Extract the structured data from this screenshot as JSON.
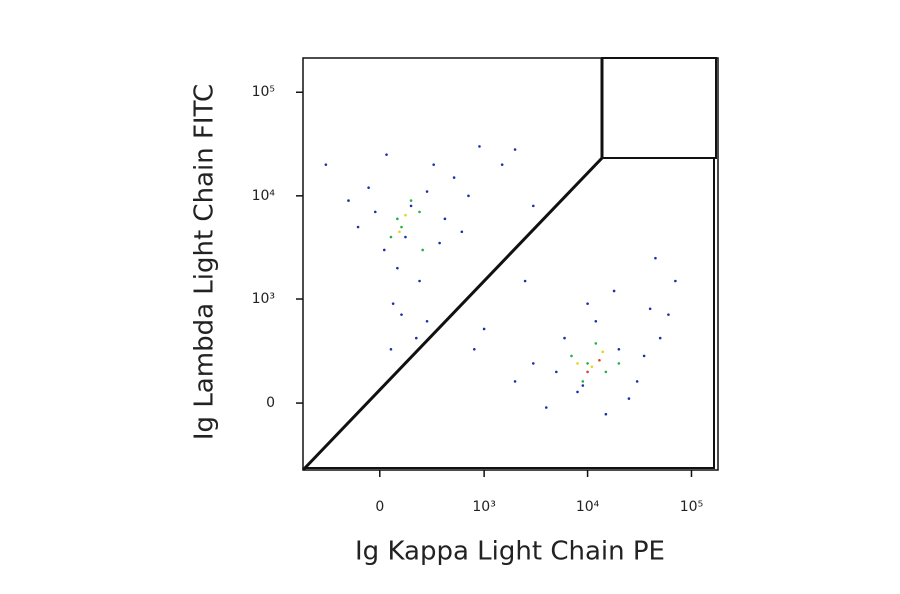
{
  "chart_data": {
    "type": "scatter",
    "scale": "biexponential",
    "x_label": "Ig Kappa Light Chain PE",
    "y_label": "Ig Lambda Light Chain FITC",
    "xlim": [
      -530,
      180000
    ],
    "ylim": [
      -420,
      214000
    ],
    "xticks": [
      0,
      {
        "value": 1000,
        "label": "10³"
      },
      {
        "value": 10000,
        "label": "10⁴"
      },
      {
        "value": 100000,
        "label": "10⁵"
      }
    ],
    "yticks": [
      0,
      {
        "value": 1000,
        "label": "10³"
      },
      {
        "value": 10000,
        "label": "10⁴"
      },
      {
        "value": 100000,
        "label": "10⁵"
      }
    ],
    "series": [
      {
        "color": "#1a2fa8",
        "x": [
          20,
          150,
          -50,
          300,
          80,
          400,
          -100,
          200,
          60,
          250,
          500,
          700,
          30,
          120,
          -20,
          350,
          900,
          1500,
          100,
          180,
          50,
          600,
          -150,
          250,
          2000,
          3000,
          -300,
          5000,
          8000,
          20000,
          30000,
          3000,
          12000,
          50000,
          2000,
          15000,
          40000,
          6000,
          25000,
          10000,
          70000,
          4000,
          18000,
          35000,
          9000,
          1000,
          60000,
          800,
          2500,
          45000
        ],
        "values": [
          3000,
          8000,
          12000,
          20000,
          2000,
          6000,
          5000,
          1500,
          900,
          600,
          15000,
          10000,
          25000,
          4000,
          7000,
          3500,
          30000,
          20000,
          700,
          400,
          300,
          4500,
          9000,
          11000,
          28000,
          8000,
          20000,
          150,
          50,
          300,
          100,
          200,
          600,
          400,
          100,
          -50,
          800,
          400,
          20,
          900,
          1500,
          -20,
          1200,
          250,
          80,
          500,
          700,
          300,
          1500,
          2500
        ]
      },
      {
        "color": "#21b04a",
        "x": [
          100,
          200,
          50,
          150,
          80,
          220,
          10000,
          15000,
          7000,
          12000,
          20000,
          9000
        ],
        "values": [
          5000,
          7000,
          4000,
          9000,
          6000,
          3000,
          200,
          150,
          250,
          350,
          200,
          100
        ]
      },
      {
        "color": "#e8d21a",
        "x": [
          120,
          90,
          11000,
          14000,
          8000
        ],
        "values": [
          6500,
          4500,
          180,
          280,
          200
        ]
      },
      {
        "color": "#e0401a",
        "x": [
          13000,
          10000
        ],
        "values": [
          220,
          150
        ]
      }
    ]
  }
}
